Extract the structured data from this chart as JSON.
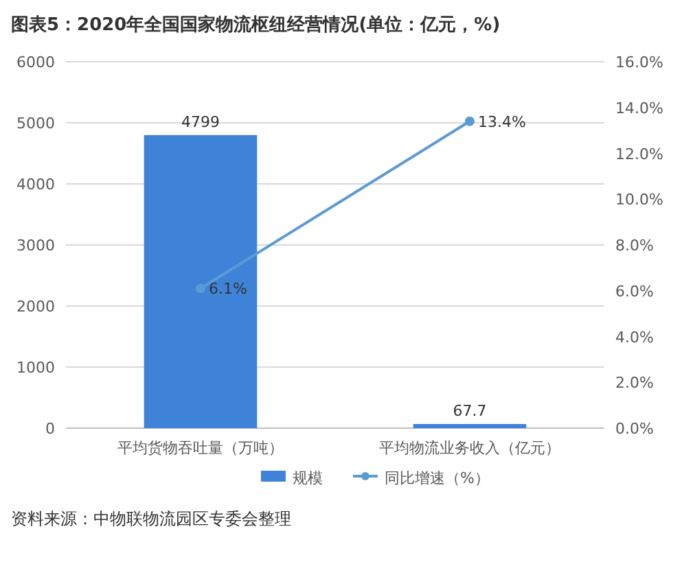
{
  "chart_data": {
    "type": "bar",
    "title": "图表5：2020年全国国家物流枢纽经营情况(单位：亿元，%)",
    "categories": [
      "平均货物吞吐量（万吨）",
      "平均物流业务收入（亿元）"
    ],
    "series": [
      {
        "name": "规模",
        "color": "#3f83d9",
        "values": [
          4799,
          67.7
        ],
        "value_labels": [
          "4799",
          "67.7"
        ]
      },
      {
        "name": "同比增速（%）",
        "type": "line",
        "axis": "y2",
        "color": "#5b9bd5",
        "values": [
          6.1,
          13.4
        ],
        "value_labels": [
          "6.1%",
          "13.4%"
        ]
      }
    ],
    "marker": "circle",
    "ylim": [
      0,
      6000
    ],
    "yticks": [
      0,
      1000,
      2000,
      3000,
      4000,
      5000,
      6000
    ],
    "y2lim": [
      0,
      16
    ],
    "y2ticks": [
      {
        "value": 0,
        "label": "0.0%"
      },
      {
        "value": 2,
        "label": "2.0%"
      },
      {
        "value": 4,
        "label": "4.0%"
      },
      {
        "value": 6,
        "label": "6.0%"
      },
      {
        "value": 8,
        "label": "8.0%"
      },
      {
        "value": 10,
        "label": "10.0%"
      },
      {
        "value": 12,
        "label": "12.0%"
      },
      {
        "value": 14,
        "label": "14.0%"
      },
      {
        "value": 16,
        "label": "16.0%"
      }
    ],
    "grid": "y",
    "legend": "bottom",
    "annotations": [
      "资料来源：中物联物流园区专委会整理"
    ]
  }
}
